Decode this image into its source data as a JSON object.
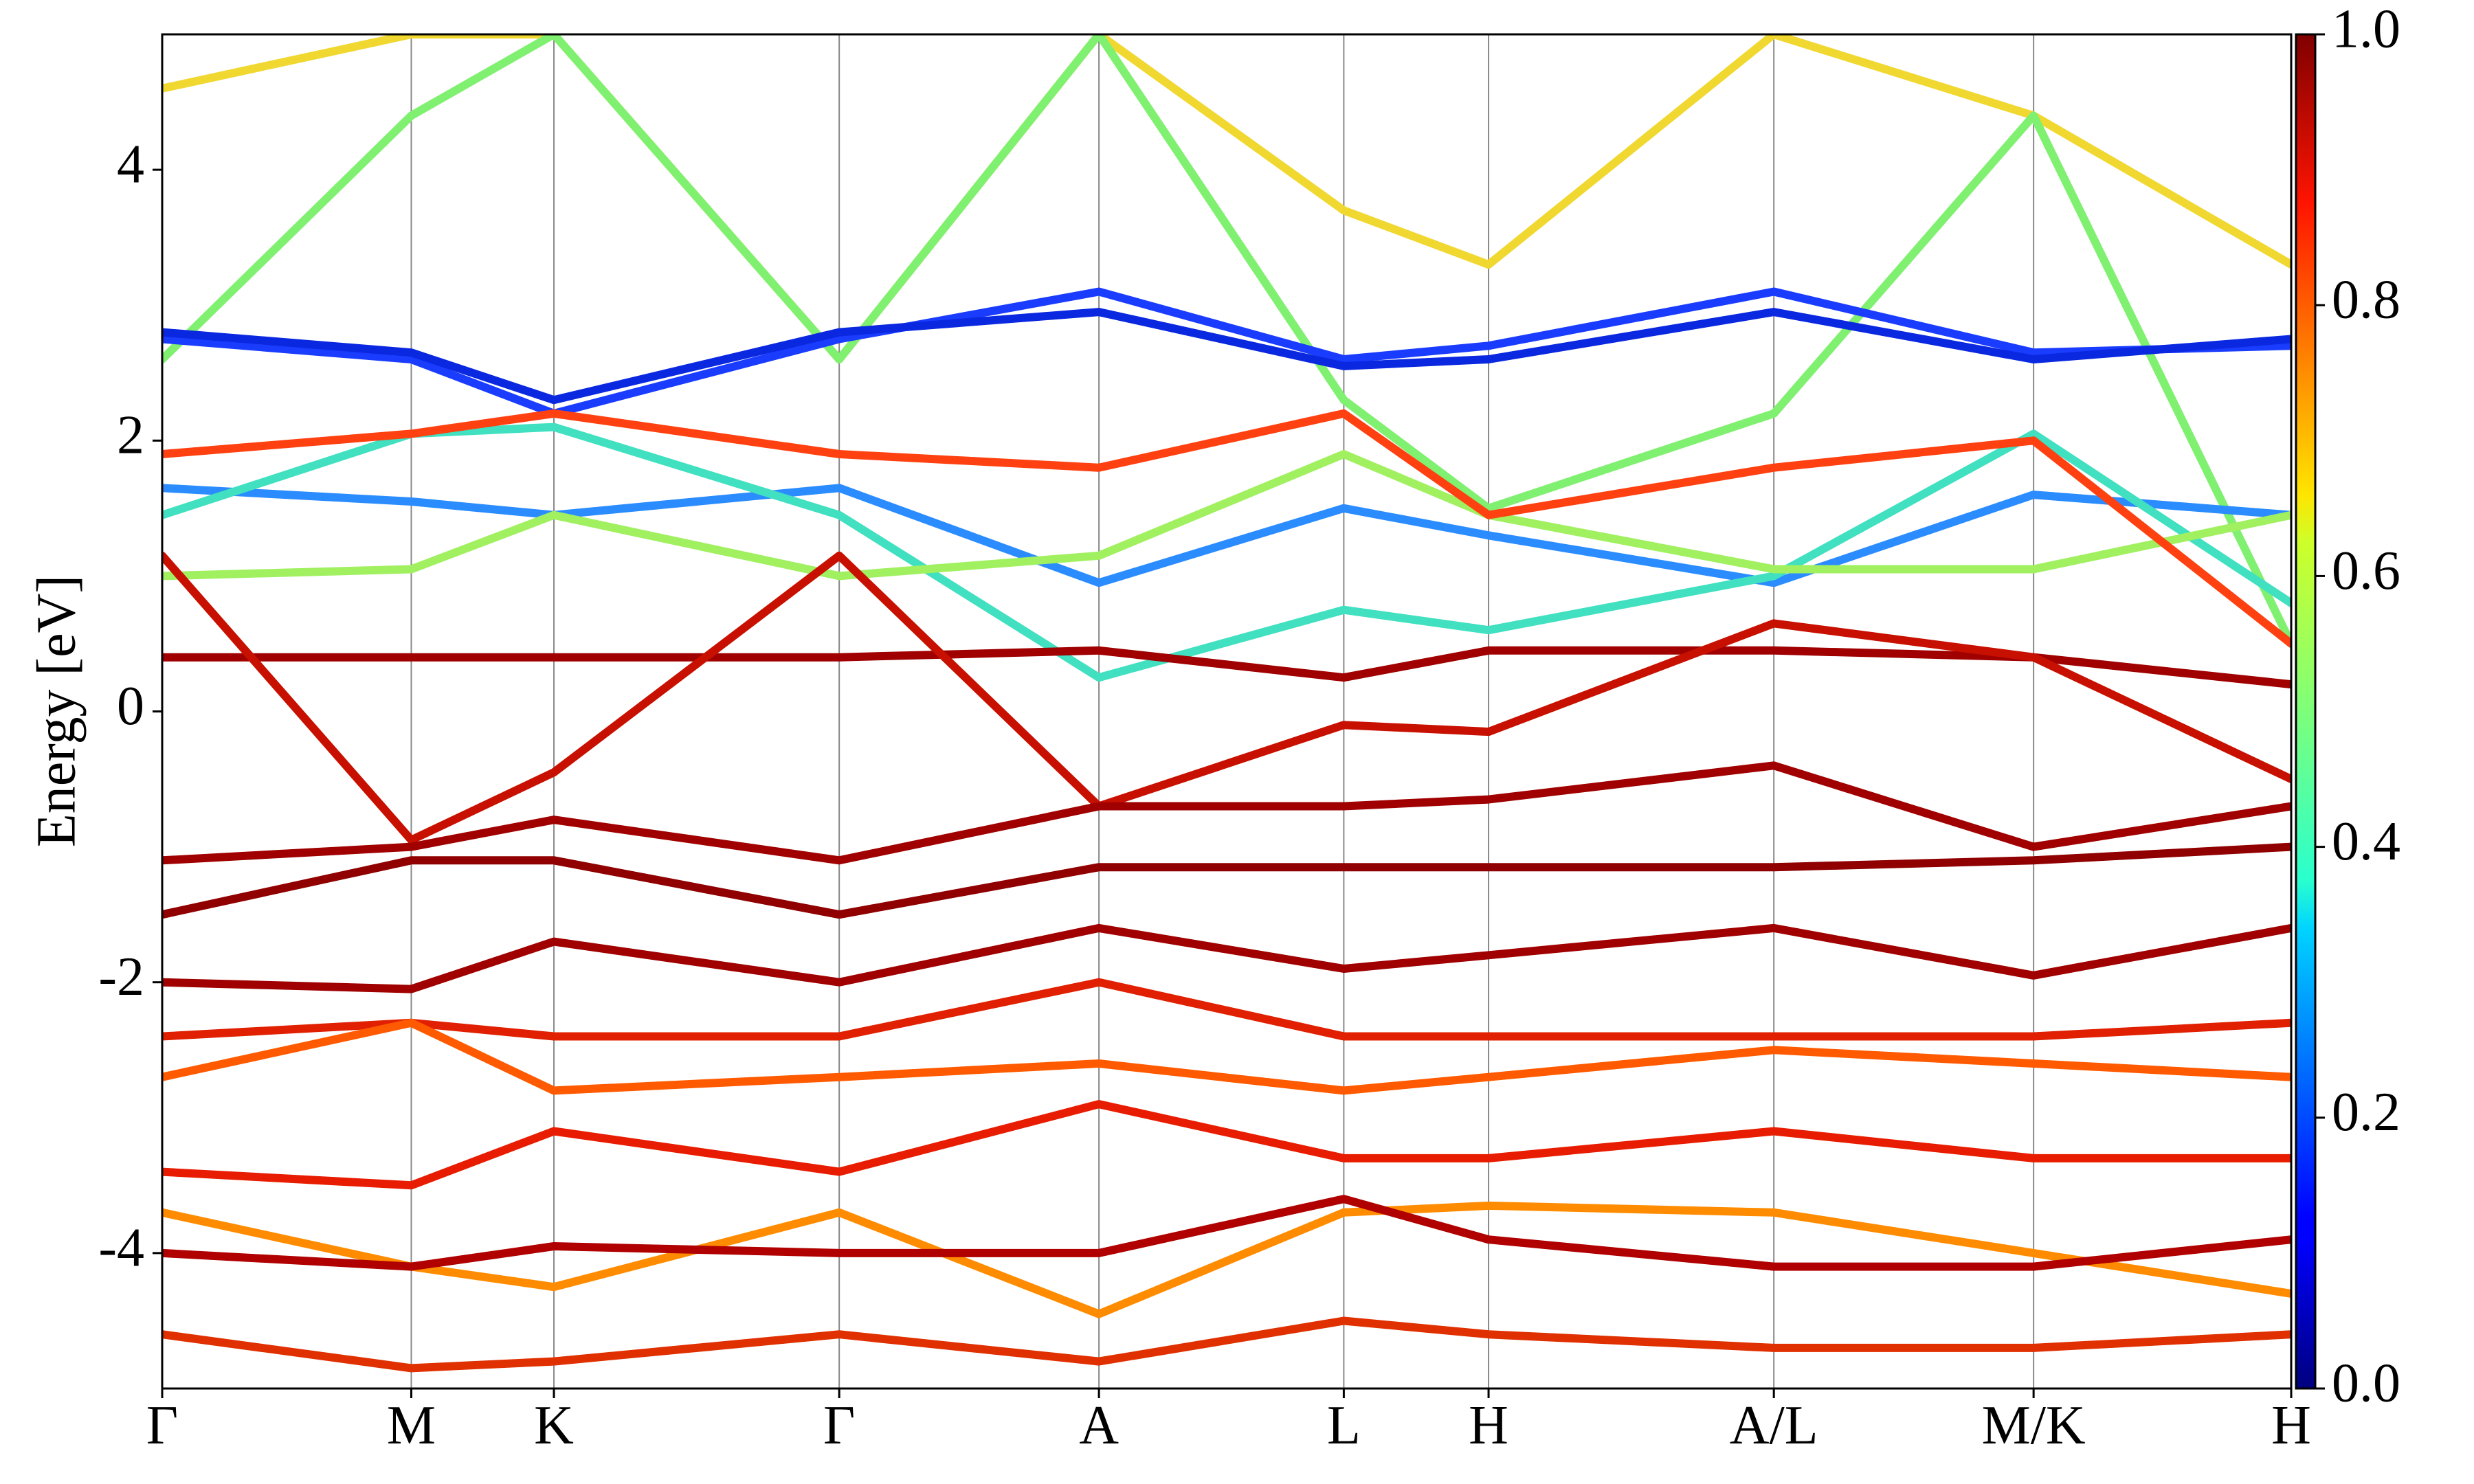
{
  "chart_data": {
    "type": "line",
    "ylabel": "Energy [eV]",
    "xlim": [
      0,
      1
    ],
    "ylim": [
      -5,
      5
    ],
    "yticks": [
      -4,
      -2,
      0,
      2,
      4
    ],
    "xticks": [
      {
        "value": 0,
        "label": "Γ"
      },
      {
        "value": 0.117,
        "label": "M"
      },
      {
        "value": 0.184,
        "label": "K"
      },
      {
        "value": 0.318,
        "label": "Γ"
      },
      {
        "value": 0.44,
        "label": "A"
      },
      {
        "value": 0.555,
        "label": "L"
      },
      {
        "value": 0.623,
        "label": "H"
      },
      {
        "value": 0.757,
        "label": "A/L"
      },
      {
        "value": 0.879,
        "label": "M/K"
      },
      {
        "value": 1,
        "label": "H"
      }
    ],
    "x": [
      0,
      0.117,
      0.184,
      0.318,
      0.44,
      0.555,
      0.623,
      0.757,
      0.879,
      1
    ],
    "series": [
      {
        "color": "#f0d830",
        "values": [
          4.6,
          5,
          5,
          2.6,
          5,
          3.7,
          3.3,
          5,
          4.4,
          3.3
        ]
      },
      {
        "color": "#80f070",
        "values": [
          2.6,
          4.4,
          5,
          2.6,
          5,
          2.3,
          1.5,
          2.2,
          4.4,
          0.5
        ]
      },
      {
        "color": "#1a3cff",
        "values": [
          2.75,
          2.6,
          2.2,
          2.75,
          3.1,
          2.6,
          2.7,
          3.1,
          2.65,
          2.7
        ]
      },
      {
        "color": "#0a28e0",
        "values": [
          2.8,
          2.65,
          2.3,
          2.8,
          2.95,
          2.55,
          2.6,
          2.95,
          2.6,
          2.75
        ]
      },
      {
        "color": "#2a8cff",
        "values": [
          1.65,
          1.55,
          1.45,
          1.65,
          0.95,
          1.5,
          1.3,
          0.95,
          1.6,
          1.45
        ]
      },
      {
        "color": "#40e0c0",
        "values": [
          1.45,
          2.05,
          2.1,
          1.45,
          0.25,
          0.75,
          0.6,
          1.0,
          2.05,
          0.8
        ]
      },
      {
        "color": "#a0f060",
        "values": [
          1.0,
          1.05,
          1.45,
          1.0,
          1.15,
          1.9,
          1.45,
          1.05,
          1.05,
          1.45
        ]
      },
      {
        "color": "#ff4010",
        "values": [
          1.9,
          2.05,
          2.2,
          1.9,
          1.8,
          2.2,
          1.45,
          1.8,
          2.0,
          0.5
        ]
      },
      {
        "color": "#a00000",
        "values": [
          0.4,
          0.4,
          0.4,
          0.4,
          0.45,
          0.25,
          0.45,
          0.45,
          0.4,
          0.2
        ]
      },
      {
        "color": "#c81000",
        "values": [
          1.15,
          -0.95,
          -0.45,
          1.15,
          -0.7,
          -0.1,
          -0.15,
          0.65,
          0.4,
          -0.5
        ]
      },
      {
        "color": "#a00000",
        "values": [
          -1.1,
          -1.0,
          -0.8,
          -1.1,
          -0.7,
          -0.7,
          -0.65,
          -0.4,
          -1.0,
          -0.7
        ]
      },
      {
        "color": "#900000",
        "values": [
          -1.5,
          -1.1,
          -1.1,
          -1.5,
          -1.15,
          -1.15,
          -1.15,
          -1.15,
          -1.1,
          -1.0
        ]
      },
      {
        "color": "#a00000",
        "values": [
          -2.0,
          -2.05,
          -1.7,
          -2.0,
          -1.6,
          -1.9,
          -1.8,
          -1.6,
          -1.95,
          -1.6
        ]
      },
      {
        "color": "#e02000",
        "values": [
          -2.4,
          -2.3,
          -2.4,
          -2.4,
          -2.0,
          -2.4,
          -2.4,
          -2.4,
          -2.4,
          -2.3
        ]
      },
      {
        "color": "#ff5a00",
        "values": [
          -2.7,
          -2.3,
          -2.8,
          -2.7,
          -2.6,
          -2.8,
          -2.7,
          -2.5,
          -2.6,
          -2.7
        ]
      },
      {
        "color": "#e81c00",
        "values": [
          -3.4,
          -3.5,
          -3.1,
          -3.4,
          -2.9,
          -3.3,
          -3.3,
          -3.1,
          -3.3,
          -3.3
        ]
      },
      {
        "color": "#ff8c00",
        "values": [
          -3.7,
          -4.1,
          -4.25,
          -3.7,
          -4.45,
          -3.7,
          -3.65,
          -3.7,
          -4.0,
          -4.3
        ]
      },
      {
        "color": "#b00000",
        "values": [
          -4.0,
          -4.1,
          -3.95,
          -4.0,
          -4.0,
          -3.6,
          -3.9,
          -4.1,
          -4.1,
          -3.9
        ]
      },
      {
        "color": "#e03000",
        "values": [
          -4.6,
          -4.85,
          -4.8,
          -4.6,
          -4.8,
          -4.5,
          -4.6,
          -4.7,
          -4.7,
          -4.6
        ]
      }
    ],
    "colorbar": {
      "colormap": "jet",
      "lim": [
        0,
        1
      ],
      "ticks": [
        {
          "value": 0,
          "label": "0.0"
        },
        {
          "value": 0.2,
          "label": "0.2"
        },
        {
          "value": 0.4,
          "label": "0.4"
        },
        {
          "value": 0.6,
          "label": "0.6"
        },
        {
          "value": 0.8,
          "label": "0.8"
        },
        {
          "value": 1,
          "label": "1.0"
        }
      ]
    }
  }
}
